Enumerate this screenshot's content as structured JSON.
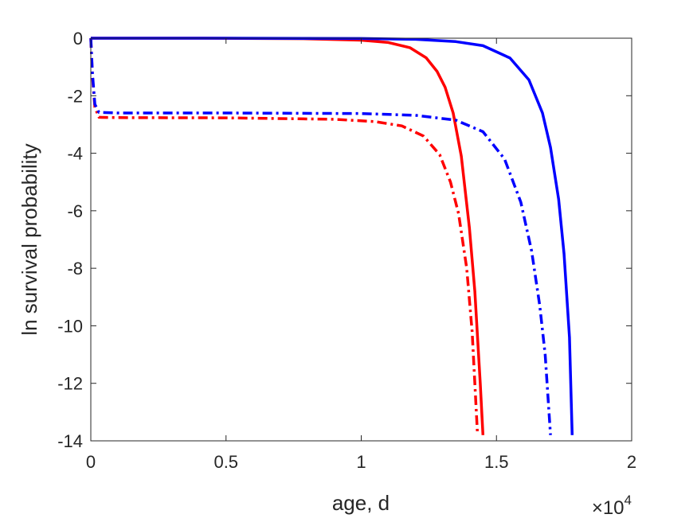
{
  "chart_data": {
    "type": "line",
    "title": "",
    "xlabel": "age, d",
    "ylabel": "ln survival probability",
    "x_exponent_label": "×10",
    "x_exponent_power": "4",
    "x_scale": 10000,
    "xlim": [
      0,
      20000
    ],
    "ylim": [
      -14,
      0
    ],
    "xticks": [
      0,
      5000,
      10000,
      15000,
      20000
    ],
    "xtick_labels": [
      "0",
      "0.5",
      "1",
      "1.5",
      "2"
    ],
    "yticks": [
      0,
      -2,
      -4,
      -6,
      -8,
      -10,
      -12,
      -14
    ],
    "ytick_labels": [
      "0",
      "-2",
      "-4",
      "-6",
      "-8",
      "-10",
      "-12",
      "-14"
    ],
    "grid": false,
    "legend": "none",
    "series": [
      {
        "color": "#ff0000",
        "style": "solid",
        "x": [
          0,
          4000,
          8000,
          10000,
          11000,
          11800,
          12400,
          12800,
          13100,
          13400,
          13700,
          14000,
          14200,
          14400,
          14500
        ],
        "y": [
          0,
          0,
          -0.02,
          -0.07,
          -0.15,
          -0.33,
          -0.68,
          -1.15,
          -1.7,
          -2.6,
          -4.1,
          -6.6,
          -8.8,
          -12.0,
          -13.8
        ]
      },
      {
        "color": "#0000ff",
        "style": "solid",
        "x": [
          0,
          5000,
          10000,
          12000,
          13500,
          14500,
          15500,
          16200,
          16700,
          17000,
          17300,
          17500,
          17700,
          17800
        ],
        "y": [
          0,
          0,
          -0.01,
          -0.04,
          -0.12,
          -0.26,
          -0.69,
          -1.45,
          -2.6,
          -3.8,
          -5.6,
          -7.5,
          -10.4,
          -13.8
        ]
      },
      {
        "color": "#ff0000",
        "style": "dashdot",
        "x": [
          0,
          60,
          150,
          300,
          1000,
          5000,
          9000,
          10500,
          11500,
          12300,
          12900,
          13300,
          13600,
          13900,
          14100,
          14300
        ],
        "y": [
          0,
          -1.3,
          -2.4,
          -2.75,
          -2.76,
          -2.77,
          -2.82,
          -2.9,
          -3.05,
          -3.4,
          -4.05,
          -5.0,
          -6.1,
          -8.0,
          -10.2,
          -13.8
        ]
      },
      {
        "color": "#0000ff",
        "style": "dashdot",
        "x": [
          0,
          60,
          150,
          300,
          1000,
          5000,
          10000,
          12000,
          13500,
          14500,
          15300,
          15900,
          16300,
          16600,
          16800,
          17000
        ],
        "y": [
          0,
          -1.2,
          -2.3,
          -2.58,
          -2.6,
          -2.6,
          -2.62,
          -2.68,
          -2.85,
          -3.25,
          -4.2,
          -5.7,
          -7.4,
          -9.3,
          -11.0,
          -13.8
        ]
      }
    ]
  }
}
